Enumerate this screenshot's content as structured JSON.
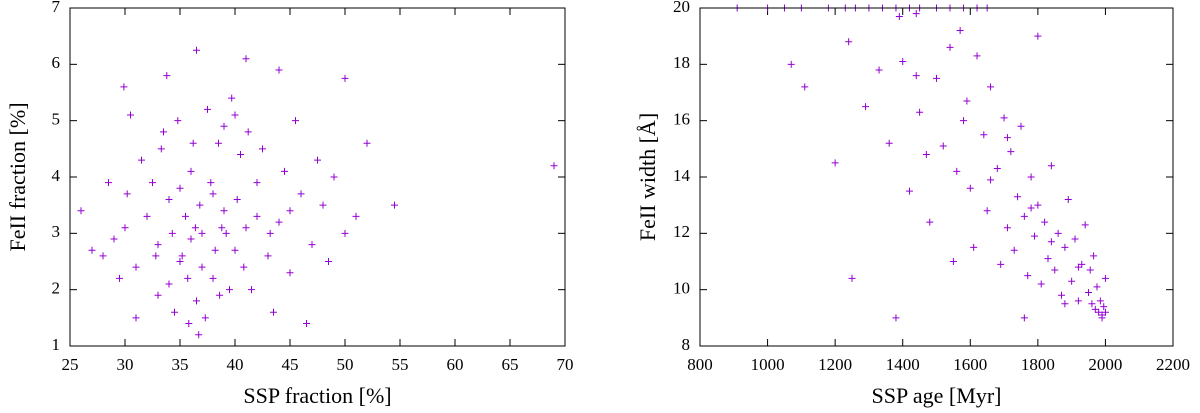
{
  "chart_data": [
    {
      "type": "scatter",
      "xlabel": "SSP fraction [%]",
      "ylabel": "FeII fraction [%]",
      "color": "#9400d3",
      "xlim": [
        25,
        70
      ],
      "xticks": [
        25,
        30,
        35,
        40,
        45,
        50,
        55,
        60,
        65,
        70
      ],
      "ylim": [
        1,
        7
      ],
      "yticks": [
        1,
        2,
        3,
        4,
        5,
        6,
        7
      ],
      "x": [
        37,
        35,
        39,
        33,
        41,
        36,
        38,
        34,
        40,
        42,
        31,
        44,
        36.5,
        38.5,
        35.5,
        32.5,
        39.5,
        43,
        30,
        46,
        37.5,
        34.5,
        40.5,
        33.5,
        45,
        29,
        48,
        36,
        38,
        35,
        37,
        41.5,
        32,
        39,
        34,
        42.5,
        36.8,
        38.2,
        35.7,
        40.2,
        31.5,
        44.5,
        33,
        47,
        28,
        50,
        37.3,
        39.7,
        36.2,
        34.8,
        43.5,
        30.5,
        45.5,
        26,
        69,
        54.5,
        36.5,
        41,
        29.9,
        50,
        36.7,
        52,
        27,
        46.5,
        33.8,
        44,
        31,
        49,
        38.8,
        35.2,
        37.8,
        40.8,
        32.8,
        42,
        36.4,
        39.2,
        34.3,
        38.6,
        41.2,
        30.2,
        47.5,
        29.5,
        43.2,
        35.8,
        48.5,
        33.3,
        40,
        51,
        28.5,
        45
      ],
      "values": [
        3,
        2.5,
        3.4,
        2.8,
        3.1,
        4.1,
        2.2,
        3.6,
        2.7,
        3.9,
        2.4,
        3.2,
        1.8,
        4.6,
        3.3,
        3.9,
        2.0,
        2.6,
        3.1,
        3.7,
        5.2,
        1.6,
        4.4,
        4.8,
        2.3,
        2.9,
        3.5,
        2.9,
        3.7,
        3.8,
        2.4,
        2.0,
        3.3,
        4.9,
        2.1,
        4.5,
        3.5,
        2.7,
        2.2,
        3.6,
        4.3,
        4.1,
        1.9,
        2.8,
        2.6,
        3.0,
        1.5,
        5.4,
        4.6,
        5.0,
        1.6,
        5.1,
        5.0,
        3.4,
        4.2,
        3.5,
        6.25,
        6.1,
        5.6,
        5.75,
        1.2,
        4.6,
        2.7,
        1.4,
        5.8,
        5.9,
        1.5,
        4.0,
        3.1,
        2.6,
        3.9,
        2.4,
        2.6,
        3.3,
        3.1,
        3.0,
        3.0,
        1.9,
        4.8,
        3.7,
        4.3,
        2.2,
        3.0,
        1.4,
        2.5,
        4.5,
        5.1,
        3.3,
        3.9,
        3.4
      ]
    },
    {
      "type": "scatter",
      "xlabel": "SSP age [Myr]",
      "ylabel": "FeII width [Å]",
      "color": "#9400d3",
      "xlim": [
        800,
        2200
      ],
      "xticks": [
        800,
        1000,
        1200,
        1400,
        1600,
        1800,
        2000,
        2200
      ],
      "ylim": [
        8,
        20
      ],
      "yticks": [
        8,
        10,
        12,
        14,
        16,
        18,
        20
      ],
      "x": [
        910,
        1000,
        1050,
        1100,
        1180,
        1230,
        1260,
        1300,
        1340,
        1380,
        1420,
        1450,
        1500,
        1540,
        1580,
        1620,
        1650,
        1390,
        1440,
        1070,
        1110,
        1250,
        1380,
        1200,
        1240,
        1290,
        1330,
        1360,
        1400,
        1420,
        1450,
        1480,
        1500,
        1520,
        1540,
        1560,
        1570,
        1590,
        1600,
        1610,
        1620,
        1640,
        1650,
        1660,
        1680,
        1690,
        1700,
        1710,
        1720,
        1730,
        1740,
        1750,
        1760,
        1770,
        1780,
        1790,
        1800,
        1800,
        1810,
        1820,
        1830,
        1840,
        1850,
        1860,
        1870,
        1880,
        1890,
        1900,
        1910,
        1920,
        1930,
        1940,
        1950,
        1955,
        1960,
        1965,
        1970,
        1975,
        1980,
        1985,
        1990,
        1995,
        2000,
        2000,
        1990,
        1760,
        1550,
        1470,
        1440,
        1580,
        1660,
        1710,
        1780,
        1840,
        1920,
        1880
      ],
      "values": [
        20,
        20,
        20,
        20,
        20,
        20,
        20,
        20,
        20,
        20,
        20,
        20,
        20,
        20,
        20,
        20,
        20,
        19.7,
        19.8,
        18,
        17.2,
        10.4,
        9,
        14.5,
        18.8,
        16.5,
        17.8,
        15.2,
        18.1,
        13.5,
        16.3,
        12.4,
        17.5,
        15.1,
        18.6,
        14.2,
        19.2,
        16.7,
        13.6,
        11.5,
        18.3,
        15.5,
        12.8,
        17.2,
        14.3,
        10.9,
        16.1,
        12.2,
        14.9,
        11.4,
        13.3,
        15.8,
        12.6,
        10.5,
        14.0,
        11.9,
        13.0,
        19.0,
        10.2,
        12.4,
        11.1,
        14.4,
        10.7,
        12.0,
        9.8,
        11.5,
        13.2,
        10.3,
        11.8,
        9.6,
        10.9,
        12.3,
        9.9,
        10.7,
        9.5,
        11.2,
        9.3,
        10.1,
        9.2,
        9.6,
        9.1,
        9.4,
        10.4,
        9.2,
        9.0,
        9.0,
        11.0,
        14.8,
        17.6,
        16.0,
        13.9,
        15.4,
        12.9,
        11.7,
        10.8,
        9.5
      ]
    }
  ]
}
